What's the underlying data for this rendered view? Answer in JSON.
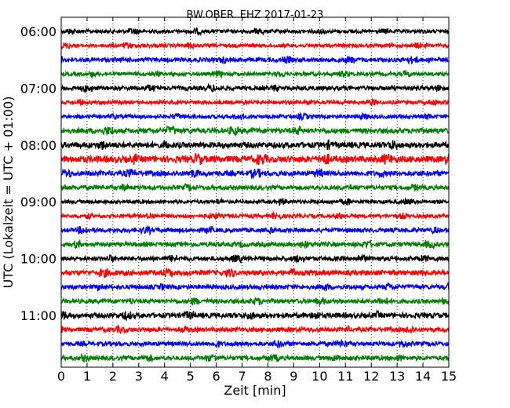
{
  "chart_data": {
    "type": "line",
    "title": "BW.OBER..EHZ 2017-01-23",
    "xlabel": "Zeit  [min]",
    "ylabel": "UTC (Lokalzeit = UTC + 01:00)",
    "xlim": [
      0,
      15
    ],
    "x_ticks": [
      "0",
      "1",
      "2",
      "3",
      "4",
      "5",
      "6",
      "7",
      "8",
      "9",
      "10",
      "11",
      "12",
      "13",
      "14",
      "15"
    ],
    "y_ticks": [
      {
        "label": "06:00",
        "row": 0
      },
      {
        "label": "07:00",
        "row": 4
      },
      {
        "label": "08:00",
        "row": 8
      },
      {
        "label": "09:00",
        "row": 12
      },
      {
        "label": "10:00",
        "row": 16
      },
      {
        "label": "11:00",
        "row": 20
      }
    ],
    "grid": "vertical-dotted",
    "trace_minutes": 15,
    "rows": 24,
    "start_time": "06:00",
    "colors": [
      "#000000",
      "#ff0000",
      "#0000ff",
      "#008000"
    ],
    "series": [
      {
        "values": [
          0.25
        ]
      },
      {
        "values": [
          0.25
        ]
      },
      {
        "values": [
          0.3
        ]
      },
      {
        "values": [
          0.25
        ]
      },
      {
        "values": [
          0.3
        ]
      },
      {
        "values": [
          0.25
        ]
      },
      {
        "values": [
          0.25
        ]
      },
      {
        "values": [
          0.35
        ]
      },
      {
        "values": [
          0.4
        ]
      },
      {
        "values": [
          0.45
        ]
      },
      {
        "values": [
          0.35
        ]
      },
      {
        "values": [
          0.3
        ]
      },
      {
        "values": [
          0.25
        ]
      },
      {
        "values": [
          0.25
        ]
      },
      {
        "values": [
          0.3
        ]
      },
      {
        "values": [
          0.3
        ]
      },
      {
        "values": [
          0.3
        ]
      },
      {
        "values": [
          0.35
        ]
      },
      {
        "values": [
          0.3
        ]
      },
      {
        "values": [
          0.3
        ]
      },
      {
        "values": [
          0.35
        ]
      },
      {
        "values": [
          0.3
        ]
      },
      {
        "values": [
          0.3
        ]
      },
      {
        "values": [
          0.3
        ]
      }
    ]
  }
}
